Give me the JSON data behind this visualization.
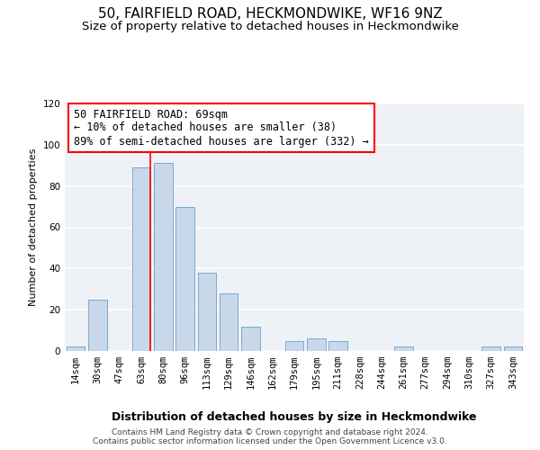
{
  "title": "50, FAIRFIELD ROAD, HECKMONDWIKE, WF16 9NZ",
  "subtitle": "Size of property relative to detached houses in Heckmondwike",
  "xlabel": "Distribution of detached houses by size in Heckmondwike",
  "ylabel": "Number of detached properties",
  "bar_color": "#c8d8ea",
  "bar_edge_color": "#7aaac8",
  "bg_color": "#eef2f7",
  "grid_color": "#ffffff",
  "categories": [
    "14sqm",
    "30sqm",
    "47sqm",
    "63sqm",
    "80sqm",
    "96sqm",
    "113sqm",
    "129sqm",
    "146sqm",
    "162sqm",
    "179sqm",
    "195sqm",
    "211sqm",
    "228sqm",
    "244sqm",
    "261sqm",
    "277sqm",
    "294sqm",
    "310sqm",
    "327sqm",
    "343sqm"
  ],
  "values": [
    2,
    25,
    0,
    89,
    91,
    70,
    38,
    28,
    12,
    0,
    5,
    6,
    5,
    0,
    0,
    2,
    0,
    0,
    0,
    2,
    2
  ],
  "ylim": [
    0,
    120
  ],
  "yticks": [
    0,
    20,
    40,
    60,
    80,
    100,
    120
  ],
  "property_label": "50 FAIRFIELD ROAD: 69sqm",
  "annotation_line1": "← 10% of detached houses are smaller (38)",
  "annotation_line2": "89% of semi-detached houses are larger (332) →",
  "vline_x_index": 3.42,
  "footer_line1": "Contains HM Land Registry data © Crown copyright and database right 2024.",
  "footer_line2": "Contains public sector information licensed under the Open Government Licence v3.0.",
  "title_fontsize": 11,
  "subtitle_fontsize": 9.5,
  "xlabel_fontsize": 9,
  "ylabel_fontsize": 8,
  "tick_fontsize": 7.5,
  "annotation_fontsize": 8.5,
  "footer_fontsize": 6.5
}
